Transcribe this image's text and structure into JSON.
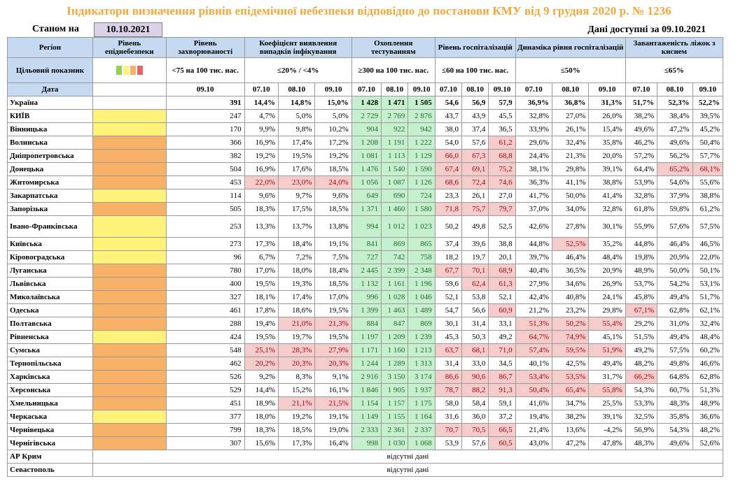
{
  "title": "Індикатори визначення рівнів епідемічної небезпеки відповідно до постанови КМУ від 9 грудня 2020 р. № 1236",
  "as_of_label": "Станом на",
  "as_of_date": "10.10.2021",
  "available": "Дані доступні за 09.10.2021",
  "headers": {
    "region": "Регіон",
    "level": "Рівень епіднебезпеки",
    "incidence": "Рівень захворюваності",
    "detection": "Коефіцієнт виявлення випадків інфікування",
    "testing": "Охоплення тестуванням",
    "hosp": "Рівень госпіталізацій",
    "dynamics": "Динаміка рівня госпіталізацій",
    "oxygen": "Завантаженість ліжок з киснем"
  },
  "target": {
    "label": "Цільовий показник",
    "incidence": "<75 на 100 тис. нас.",
    "detection": "≤20% / <4%",
    "testing": "≥300 на 100 тис. нас.",
    "hosp": "≤60 на 100 тис. нас.",
    "dynamics": "≤50%",
    "oxygen": "≤65%"
  },
  "level_colors": [
    "#92d050",
    "#fff27a",
    "#f7b267",
    "#e06666"
  ],
  "dates": {
    "label": "Дата",
    "incidence": "09.10",
    "detection": [
      "07.10",
      "08.10",
      "09.10"
    ],
    "testing": [
      "07.10",
      "08.10",
      "09.10"
    ],
    "hosp": [
      "07.10",
      "08.10",
      "09.10"
    ],
    "dynamics": [
      "07.10",
      "08.10",
      "09.10"
    ],
    "oxygen": [
      "07.10",
      "08.10",
      "09.10"
    ]
  },
  "rows": [
    {
      "region": "Україна",
      "level": "",
      "inc": "391",
      "det": [
        "14,4%",
        "14,8%",
        "15,0%"
      ],
      "tst": [
        "1 428",
        "1 471",
        "1 505"
      ],
      "hsp": [
        "54,6",
        "56,9",
        "57,9"
      ],
      "dyn": [
        "36,9%",
        "36,8%",
        "31,3%"
      ],
      "oxy": [
        "51,7%",
        "52,3%",
        "52,2%"
      ]
    },
    {
      "region": "КИЇВ",
      "level": "y",
      "inc": "247",
      "det": [
        "4,7%",
        "5,0%",
        "5,0%"
      ],
      "tst": [
        "2 729",
        "2 769",
        "2 876"
      ],
      "hsp": [
        "43,7",
        "43,9",
        "45,5"
      ],
      "dyn": [
        "32,8%",
        "27,0%",
        "26,0%"
      ],
      "oxy": [
        "38,2%",
        "38,4%",
        "39,5%"
      ]
    },
    {
      "region": "Вінницька",
      "level": "y",
      "inc": "170",
      "det": [
        "9,9%",
        "9,8%",
        "10,2%"
      ],
      "tst": [
        "904",
        "922",
        "942"
      ],
      "hsp": [
        "38,0",
        "37,4",
        "36,5"
      ],
      "dyn": [
        "33,9%",
        "26,1%",
        "15,4%"
      ],
      "oxy": [
        "49,6%",
        "47,2%",
        "45,2%"
      ]
    },
    {
      "region": "Волинська",
      "level": "o",
      "inc": "366",
      "det": [
        "16,9%",
        "17,4%",
        "17,2%"
      ],
      "tst": [
        "1 208",
        "1 191",
        "1 222"
      ],
      "hsp": [
        "54,0",
        "57,6",
        "61,2"
      ],
      "dyn": [
        "29,6%",
        "32,4%",
        "35,8%"
      ],
      "oxy": [
        "46,2%",
        "49,6%",
        "50,4%"
      ]
    },
    {
      "region": "Дніпропетровська",
      "level": "o",
      "inc": "382",
      "det": [
        "19,2%",
        "19,5%",
        "19,2%"
      ],
      "tst": [
        "1 081",
        "1 113",
        "1 129"
      ],
      "hsp": [
        "66,0",
        "67,3",
        "68,8"
      ],
      "dyn": [
        "24,4%",
        "21,3%",
        "20,0%"
      ],
      "oxy": [
        "57,2%",
        "56,2%",
        "57,7%"
      ]
    },
    {
      "region": "Донецька",
      "level": "o",
      "inc": "504",
      "det": [
        "16,9%",
        "17,6%",
        "18,5%"
      ],
      "tst": [
        "1 476",
        "1 540",
        "1 590"
      ],
      "hsp": [
        "67,4",
        "69,1",
        "75,2"
      ],
      "dyn": [
        "38,1%",
        "29,8%",
        "39,1%"
      ],
      "oxy": [
        "64,4%",
        "65,2%",
        "68,1%"
      ]
    },
    {
      "region": "Житомирська",
      "level": "o",
      "inc": "453",
      "det": [
        "22,0%",
        "23,0%",
        "24,0%"
      ],
      "tst": [
        "1 056",
        "1 087",
        "1 126"
      ],
      "hsp": [
        "68,6",
        "72,4",
        "74,6"
      ],
      "dyn": [
        "36,3%",
        "41,1%",
        "38,8%"
      ],
      "oxy": [
        "53,9%",
        "54,6%",
        "55,6%"
      ]
    },
    {
      "region": "Закарпатська",
      "level": "y",
      "inc": "114",
      "det": [
        "9,6%",
        "9,7%",
        "9,6%"
      ],
      "tst": [
        "649",
        "690",
        "724"
      ],
      "hsp": [
        "23,3",
        "26,1",
        "27,0"
      ],
      "dyn": [
        "41,7%",
        "50,0%",
        "41,4%"
      ],
      "oxy": [
        "32,8%",
        "37,9%",
        "38,8%"
      ]
    },
    {
      "region": "Запорізька",
      "level": "o",
      "inc": "505",
      "det": [
        "18,3%",
        "17,5%",
        "18,5%"
      ],
      "tst": [
        "1 371",
        "1 460",
        "1 580"
      ],
      "hsp": [
        "71,8",
        "75,7",
        "79,7"
      ],
      "dyn": [
        "37,0%",
        "34,0%",
        "32,8%"
      ],
      "oxy": [
        "61,8%",
        "59,8%",
        "61,2%"
      ]
    },
    {
      "region": "Івано-Франківська",
      "level": "y",
      "inc": "253",
      "det": [
        "13,3%",
        "13,7%",
        "13,8%"
      ],
      "tst": [
        "994",
        "1 012",
        "1 023"
      ],
      "hsp": [
        "50,2",
        "49,8",
        "52,5"
      ],
      "dyn": [
        "42,6%",
        "27,8%",
        "30,1%"
      ],
      "oxy": [
        "55,9%",
        "57,6%",
        "57,5%"
      ]
    },
    {
      "region": "Київська",
      "level": "y",
      "inc": "273",
      "det": [
        "17,3%",
        "18,4%",
        "19,1%"
      ],
      "tst": [
        "841",
        "869",
        "865"
      ],
      "hsp": [
        "37,4",
        "39,6",
        "38,8"
      ],
      "dyn": [
        "44,8%",
        "52,5%",
        "35,2%"
      ],
      "oxy": [
        "44,8%",
        "46,4%",
        "46,5%"
      ]
    },
    {
      "region": "Кіровоградська",
      "level": "y",
      "inc": "96",
      "det": [
        "6,7%",
        "7,2%",
        "7,5%"
      ],
      "tst": [
        "727",
        "742",
        "758"
      ],
      "hsp": [
        "18,2",
        "19,7",
        "20,1"
      ],
      "dyn": [
        "39,7%",
        "46,4%",
        "48,4%"
      ],
      "oxy": [
        "19,8%",
        "20,9%",
        "22,0%"
      ]
    },
    {
      "region": "Луганська",
      "level": "o",
      "inc": "780",
      "det": [
        "17,0%",
        "18,0%",
        "18,4%"
      ],
      "tst": [
        "2 445",
        "2 399",
        "2 348"
      ],
      "hsp": [
        "67,7",
        "70,1",
        "68,9"
      ],
      "dyn": [
        "40,4%",
        "36,5%",
        "20,9%"
      ],
      "oxy": [
        "48,9%",
        "50,0%",
        "50,1%"
      ]
    },
    {
      "region": "Львівська",
      "level": "o",
      "inc": "400",
      "det": [
        "19,5%",
        "19,3%",
        "18,5%"
      ],
      "tst": [
        "1 132",
        "1 161",
        "1 196"
      ],
      "hsp": [
        "59,6",
        "62,4",
        "61,3"
      ],
      "dyn": [
        "27,9%",
        "34,6%",
        "26,9%"
      ],
      "oxy": [
        "53,7%",
        "54,2%",
        "53,1%"
      ]
    },
    {
      "region": "Миколаївська",
      "level": "o",
      "inc": "327",
      "det": [
        "18,1%",
        "17,4%",
        "17,0%"
      ],
      "tst": [
        "996",
        "1 028",
        "1 046"
      ],
      "hsp": [
        "52,1",
        "53,8",
        "52,1"
      ],
      "dyn": [
        "42,4%",
        "40,8%",
        "24,1%"
      ],
      "oxy": [
        "45,8%",
        "49,4%",
        "51,7%"
      ]
    },
    {
      "region": "Одеська",
      "level": "o",
      "inc": "461",
      "det": [
        "17,8%",
        "18,6%",
        "19,5%"
      ],
      "tst": [
        "1 399",
        "1 463",
        "1 489"
      ],
      "hsp": [
        "54,7",
        "56,6",
        "60,9"
      ],
      "dyn": [
        "21,2%",
        "23,2%",
        "29,8%"
      ],
      "oxy": [
        "67,1%",
        "62,8%",
        "62,1%"
      ]
    },
    {
      "region": "Полтавська",
      "level": "o",
      "inc": "288",
      "det": [
        "19,4%",
        "21,0%",
        "21,3%"
      ],
      "tst": [
        "884",
        "847",
        "869"
      ],
      "hsp": [
        "30,1",
        "31,4",
        "33,1"
      ],
      "dyn": [
        "51,3%",
        "50,2%",
        "55,4%"
      ],
      "oxy": [
        "29,2%",
        "31,0%",
        "32,4%"
      ]
    },
    {
      "region": "Рівненська",
      "level": "y",
      "inc": "424",
      "det": [
        "19,5%",
        "19,7%",
        "19,5%"
      ],
      "tst": [
        "1 197",
        "1 209",
        "1 239"
      ],
      "hsp": [
        "45,3",
        "50,3",
        "49,2"
      ],
      "dyn": [
        "64,7%",
        "74,9%",
        "45,1%"
      ],
      "oxy": [
        "51,5%",
        "49,4%",
        "48,4%"
      ]
    },
    {
      "region": "Сумська",
      "level": "o",
      "inc": "548",
      "det": [
        "25,1%",
        "28,3%",
        "27,9%"
      ],
      "tst": [
        "1 171",
        "1 160",
        "1 213"
      ],
      "hsp": [
        "63,7",
        "68,1",
        "71,0"
      ],
      "dyn": [
        "57,4%",
        "59,5%",
        "51,9%"
      ],
      "oxy": [
        "49,2%",
        "57,5%",
        "60,2%"
      ]
    },
    {
      "region": "Тернопільська",
      "level": "o",
      "inc": "462",
      "det": [
        "20,2%",
        "20,3%",
        "20,3%"
      ],
      "tst": [
        "1 244",
        "1 289",
        "1 313"
      ],
      "hsp": [
        "31,4",
        "33,0",
        "34,5"
      ],
      "dyn": [
        "40,1%",
        "42,5%",
        "49,4%"
      ],
      "oxy": [
        "48,2%",
        "49,8%",
        "46,6%"
      ]
    },
    {
      "region": "Харківська",
      "level": "o",
      "inc": "526",
      "det": [
        "9,2%",
        "8,3%",
        "9,1%"
      ],
      "tst": [
        "2 916",
        "3 150",
        "3 174"
      ],
      "hsp": [
        "86,6",
        "90,6",
        "86,7"
      ],
      "dyn": [
        "53,4%",
        "53,5%",
        "31,7%"
      ],
      "oxy": [
        "66,2%",
        "64,8%",
        "62,8%"
      ]
    },
    {
      "region": "Херсонська",
      "level": "o",
      "inc": "529",
      "det": [
        "14,4%",
        "15,2%",
        "16,1%"
      ],
      "tst": [
        "1 846",
        "1 905",
        "1 937"
      ],
      "hsp": [
        "78,7",
        "88,2",
        "91,3"
      ],
      "dyn": [
        "50,4%",
        "65,4%",
        "55,8%"
      ],
      "oxy": [
        "54,3%",
        "60,7%",
        "51,3%"
      ]
    },
    {
      "region": "Хмельницька",
      "level": "o",
      "inc": "451",
      "det": [
        "18,9%",
        "21,1%",
        "21,5%"
      ],
      "tst": [
        "1 154",
        "1 157",
        "1 175"
      ],
      "hsp": [
        "58,0",
        "58,4",
        "59,1"
      ],
      "dyn": [
        "41,6%",
        "34,7%",
        "25,5%"
      ],
      "oxy": [
        "53,3%",
        "48,3%",
        "48,9%"
      ]
    },
    {
      "region": "Черкаська",
      "level": "y",
      "inc": "377",
      "det": [
        "18,0%",
        "19,2%",
        "19,1%"
      ],
      "tst": [
        "1 149",
        "1 155",
        "1 164"
      ],
      "hsp": [
        "31,6",
        "36,0",
        "37,2"
      ],
      "dyn": [
        "19,4%",
        "38,2%",
        "39,1%"
      ],
      "oxy": [
        "32,5%",
        "35,8%",
        "36,6%"
      ]
    },
    {
      "region": "Чернівецька",
      "level": "o",
      "inc": "799",
      "det": [
        "18,3%",
        "18,5%",
        "19,0%"
      ],
      "tst": [
        "2 333",
        "2 361",
        "2 337"
      ],
      "hsp": [
        "70,7",
        "70,5",
        "66,5"
      ],
      "dyn": [
        "21,4%",
        "13,6%",
        "-4,2%"
      ],
      "oxy": [
        "56,9%",
        "54,3%",
        "48,2%"
      ]
    },
    {
      "region": "Чернігівська",
      "level": "o",
      "inc": "307",
      "det": [
        "15,6%",
        "17,3%",
        "16,4%"
      ],
      "tst": [
        "998",
        "1 030",
        "1 068"
      ],
      "hsp": [
        "53,9",
        "57,6",
        "60,5"
      ],
      "dyn": [
        "43,0%",
        "47,2%",
        "47,8%"
      ],
      "oxy": [
        "48,3%",
        "49,6%",
        "52,6%"
      ]
    }
  ],
  "missing": [
    {
      "region": "АР Крим",
      "text": "відсутні дані"
    },
    {
      "region": "Севастополь",
      "text": "відсутні дані"
    }
  ]
}
